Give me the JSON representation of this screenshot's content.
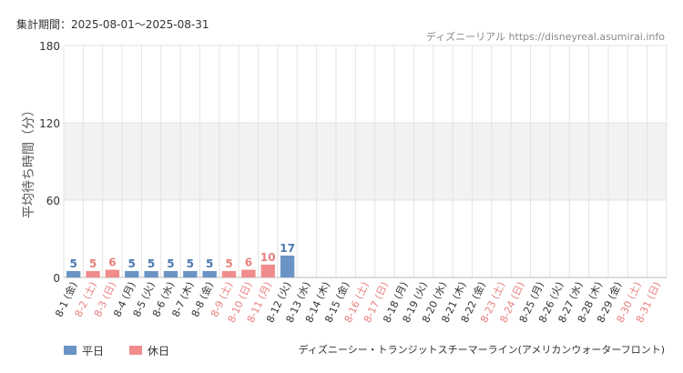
{
  "header": {
    "period": "集計期間：2025-08-01〜2025-08-31",
    "source": "ディズニーリアル https://disneyreal.asumirai.info"
  },
  "footer": {
    "attraction": "ディズニーシー・トランジットスチーマーライン(アメリカンウォーターフロント)"
  },
  "colors": {
    "weekday": "#6a94c4",
    "holiday": "#f08c8c",
    "weekday_label": "#4a78b0",
    "holiday_label": "#e97f7f",
    "band": "#f2f2f2",
    "grid": "#e3e3e3"
  },
  "chart_data": {
    "type": "bar",
    "ylabel": "平均待ち時間（分）",
    "xlabel": "",
    "ylim": [
      0,
      180
    ],
    "yticks": [
      0,
      60,
      120,
      180
    ],
    "grid": true,
    "legend_position": "bottom-left",
    "series": [
      {
        "name": "平日",
        "key": "weekday"
      },
      {
        "name": "休日",
        "key": "holiday"
      }
    ],
    "categories": [
      "8-1 (金)",
      "8-2 (土)",
      "8-3 (日)",
      "8-4 (月)",
      "8-5 (火)",
      "8-6 (水)",
      "8-7 (木)",
      "8-8 (金)",
      "8-9 (土)",
      "8-10 (日)",
      "8-11 (月)",
      "8-12 (火)",
      "8-13 (水)",
      "8-14 (木)",
      "8-15 (金)",
      "8-16 (土)",
      "8-17 (日)",
      "8-18 (月)",
      "8-19 (火)",
      "8-20 (水)",
      "8-21 (木)",
      "8-22 (金)",
      "8-23 (土)",
      "8-24 (日)",
      "8-25 (月)",
      "8-26 (火)",
      "8-27 (水)",
      "8-28 (木)",
      "8-29 (金)",
      "8-30 (土)",
      "8-31 (日)"
    ],
    "day_type": [
      "weekday",
      "holiday",
      "holiday",
      "weekday",
      "weekday",
      "weekday",
      "weekday",
      "weekday",
      "holiday",
      "holiday",
      "holiday",
      "weekday",
      "weekday",
      "weekday",
      "weekday",
      "holiday",
      "holiday",
      "weekday",
      "weekday",
      "weekday",
      "weekday",
      "weekday",
      "holiday",
      "holiday",
      "weekday",
      "weekday",
      "weekday",
      "weekday",
      "weekday",
      "holiday",
      "holiday"
    ],
    "values": [
      5,
      5,
      6,
      5,
      5,
      5,
      5,
      5,
      5,
      6,
      10,
      17,
      0,
      0,
      0,
      0,
      0,
      0,
      0,
      0,
      0,
      0,
      0,
      0,
      0,
      0,
      0,
      0,
      0,
      0,
      0
    ]
  }
}
